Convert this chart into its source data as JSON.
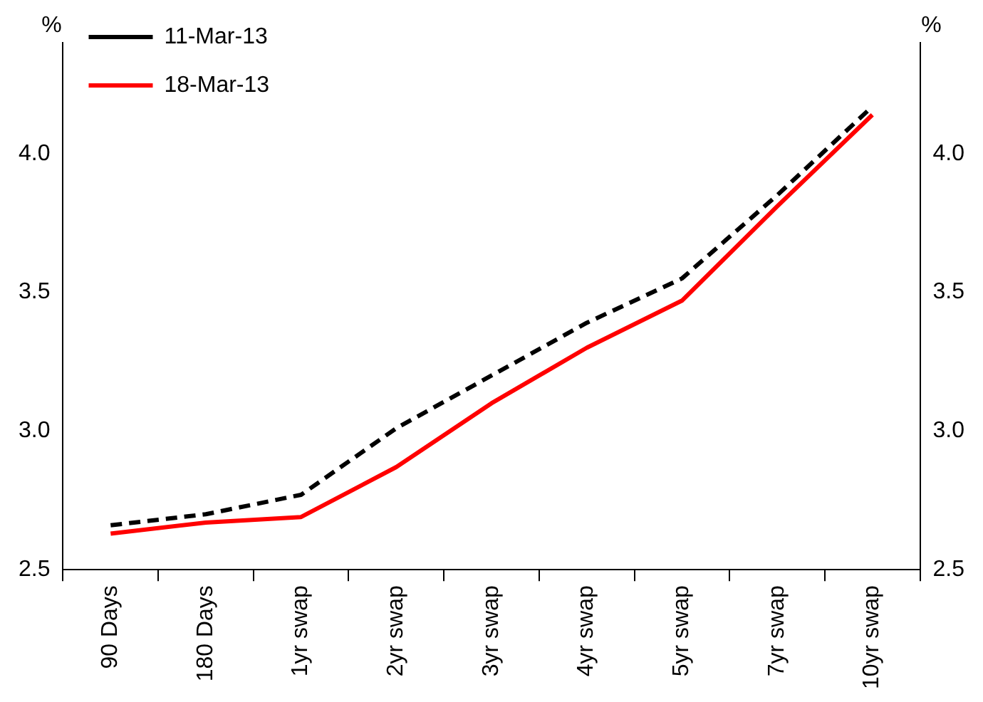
{
  "chart_data": {
    "type": "line",
    "ylabel": "%",
    "y2label": "%",
    "categories": [
      "90 Days",
      "180 Days",
      "1yr swap",
      "2yr swap",
      "3yr swap",
      "4yr swap",
      "5yr swap",
      "7yr swap",
      "10yr swap"
    ],
    "series": [
      {
        "name": "11-Mar-13",
        "color": "#000000",
        "line_style": "dashed",
        "values": [
          2.66,
          2.7,
          2.77,
          3.01,
          3.2,
          3.39,
          3.55,
          3.85,
          4.17
        ]
      },
      {
        "name": "18-Mar-13",
        "color": "#ff0000",
        "line_style": "solid",
        "values": [
          2.63,
          2.67,
          2.69,
          2.87,
          3.1,
          3.3,
          3.47,
          3.81,
          4.14
        ]
      }
    ],
    "ylim": [
      2.5,
      4.4
    ],
    "yticks": [
      2.5,
      {
        "value": 3,
        "label": "3.0"
      },
      3.5,
      {
        "value": 4,
        "label": "4.0"
      }
    ],
    "y2lim": [
      2.5,
      4.4
    ],
    "y2ticks": [
      2.5,
      {
        "value": 3,
        "label": "3.0"
      },
      3.5,
      {
        "value": 4,
        "label": "4.0"
      }
    ],
    "grid": false,
    "legend": "top left",
    "marker": "none"
  }
}
